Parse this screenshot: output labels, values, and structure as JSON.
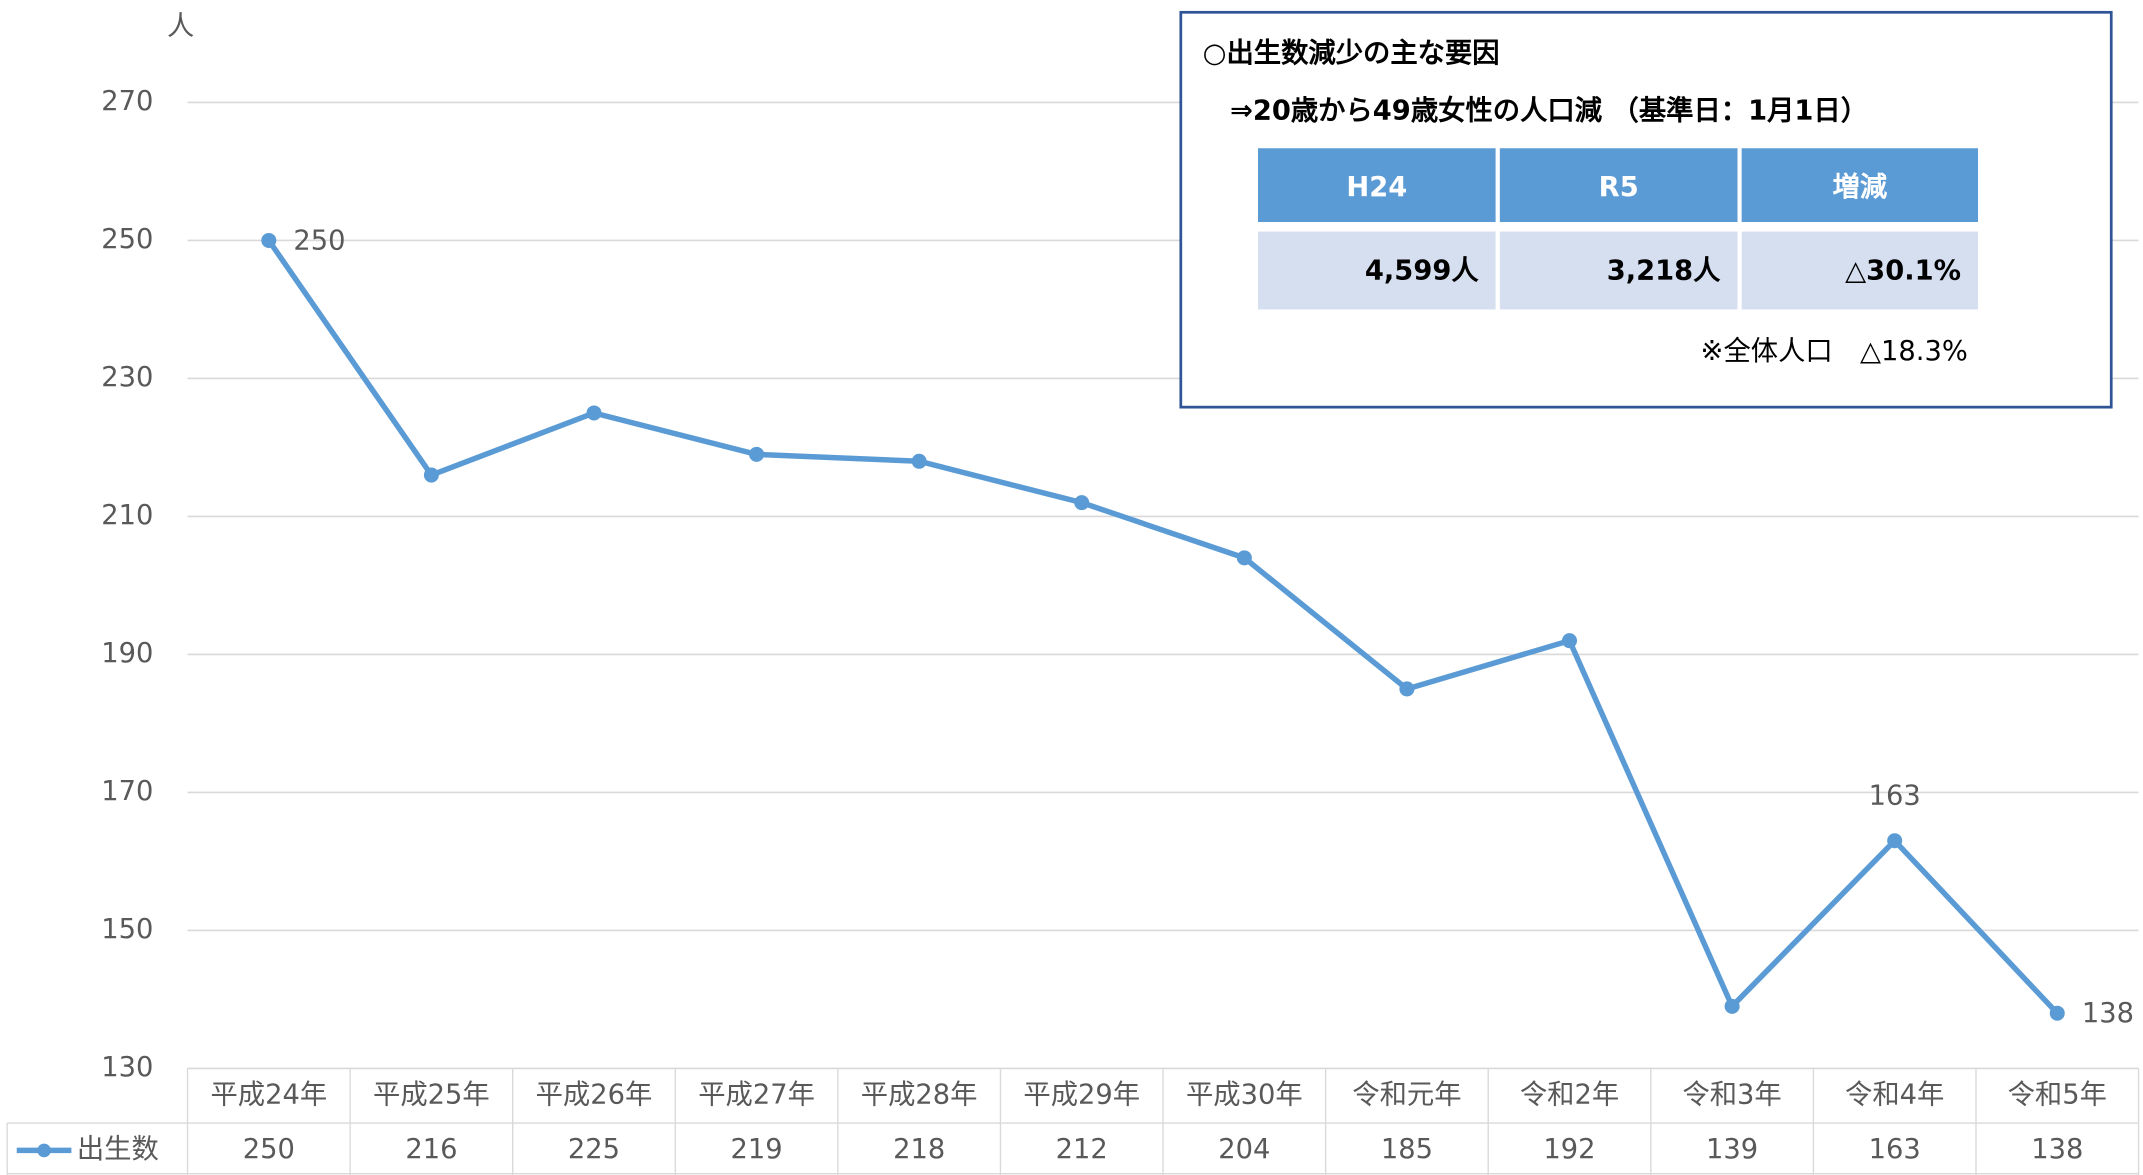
{
  "chart_data": {
    "type": "line",
    "y_unit": "人",
    "categories": [
      "平成24年",
      "平成25年",
      "平成26年",
      "平成27年",
      "平成28年",
      "平成29年",
      "平成30年",
      "令和元年",
      "令和2年",
      "令和3年",
      "令和4年",
      "令和5年"
    ],
    "series": [
      {
        "name": "出生数",
        "color": "#5b9bd5",
        "values": [
          250,
          216,
          225,
          219,
          218,
          212,
          204,
          185,
          192,
          139,
          163,
          138
        ]
      }
    ],
    "data_label_indices": [
      0,
      10,
      11
    ],
    "ylim": [
      130,
      270
    ],
    "yticks": [
      130,
      150,
      170,
      190,
      210,
      230,
      250,
      270
    ],
    "grid": true,
    "inset": {
      "title": "○出生数減少の主な要因",
      "subtitle": "⇒20歳から49歳女性の人口減 （基準日：1月1日）",
      "header": [
        "H24",
        "R5",
        "増減"
      ],
      "row": [
        "4,599人",
        "3,218人",
        "△30.1%"
      ],
      "note": "※全体人口　△18.3%"
    }
  }
}
